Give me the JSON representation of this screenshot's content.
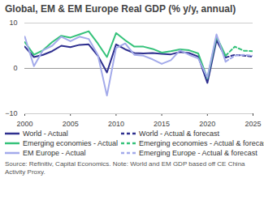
{
  "chart_data": {
    "type": "line",
    "title": "Global, EM & EM Europe Real GDP (% y/y, annual)",
    "x": [
      2000,
      2001,
      2002,
      2003,
      2004,
      2005,
      2006,
      2007,
      2008,
      2009,
      2010,
      2011,
      2012,
      2013,
      2014,
      2015,
      2016,
      2017,
      2018,
      2019,
      2020,
      2021,
      2022,
      2023,
      2024,
      2025
    ],
    "series": [
      {
        "name": "World - Actual",
        "color": "#2e2f8f",
        "line_style": "solid",
        "values": [
          4.8,
          2.5,
          3.0,
          3.8,
          5.0,
          4.7,
          5.2,
          5.3,
          2.8,
          -0.9,
          5.3,
          4.2,
          3.4,
          3.3,
          3.4,
          3.2,
          3.1,
          3.6,
          3.4,
          2.6,
          -3.2,
          6.2,
          2.4,
          null,
          null,
          null
        ]
      },
      {
        "name": "World - Actual & forecast",
        "color": "#2e2f8f",
        "line_style": "dashed",
        "values": [
          null,
          null,
          null,
          null,
          null,
          null,
          null,
          null,
          null,
          null,
          null,
          null,
          null,
          null,
          null,
          null,
          null,
          null,
          null,
          null,
          null,
          null,
          2.4,
          3.0,
          2.8,
          2.6
        ]
      },
      {
        "name": "Emerging economies - Actual",
        "color": "#35c27a",
        "line_style": "solid",
        "values": [
          5.8,
          3.0,
          4.0,
          5.8,
          7.2,
          6.8,
          7.5,
          8.2,
          5.5,
          2.5,
          7.8,
          6.2,
          4.8,
          4.8,
          4.3,
          3.5,
          3.8,
          4.2,
          4.0,
          3.3,
          -2.2,
          7.0,
          2.8,
          null,
          null,
          null
        ]
      },
      {
        "name": "Emerging economies - Actual & forecast",
        "color": "#35c27a",
        "line_style": "dashed",
        "values": [
          null,
          null,
          null,
          null,
          null,
          null,
          null,
          null,
          null,
          null,
          null,
          null,
          null,
          null,
          null,
          null,
          null,
          null,
          null,
          null,
          null,
          null,
          2.8,
          4.8,
          3.9,
          3.8
        ]
      },
      {
        "name": "EM Europe - Actual",
        "color": "#a3aaea",
        "line_style": "solid",
        "values": [
          7.0,
          0.5,
          4.0,
          5.0,
          7.0,
          6.0,
          7.0,
          6.5,
          3.0,
          -6.0,
          4.5,
          5.5,
          3.0,
          2.8,
          2.0,
          1.0,
          1.8,
          4.0,
          3.0,
          2.2,
          -2.0,
          7.5,
          1.5,
          null,
          null,
          null
        ]
      },
      {
        "name": "Emerging Europe - Actual & forecast",
        "color": "#a3aaea",
        "line_style": "dashed",
        "values": [
          null,
          null,
          null,
          null,
          null,
          null,
          null,
          null,
          null,
          null,
          null,
          null,
          null,
          null,
          null,
          null,
          null,
          null,
          null,
          null,
          null,
          null,
          1.5,
          2.8,
          3.0,
          2.8
        ]
      }
    ],
    "xlim": [
      2000,
      2025
    ],
    "xticks": [
      2000,
      2005,
      2010,
      2015,
      2020,
      2025
    ],
    "ylim": [
      -10,
      10
    ],
    "yticks": [
      -10,
      0,
      10
    ],
    "grid": true,
    "legend": "bottom",
    "source": "Source: Refinitiv, Capital Economics. Note: World and EM GDP based off CE China Activity Proxy."
  }
}
